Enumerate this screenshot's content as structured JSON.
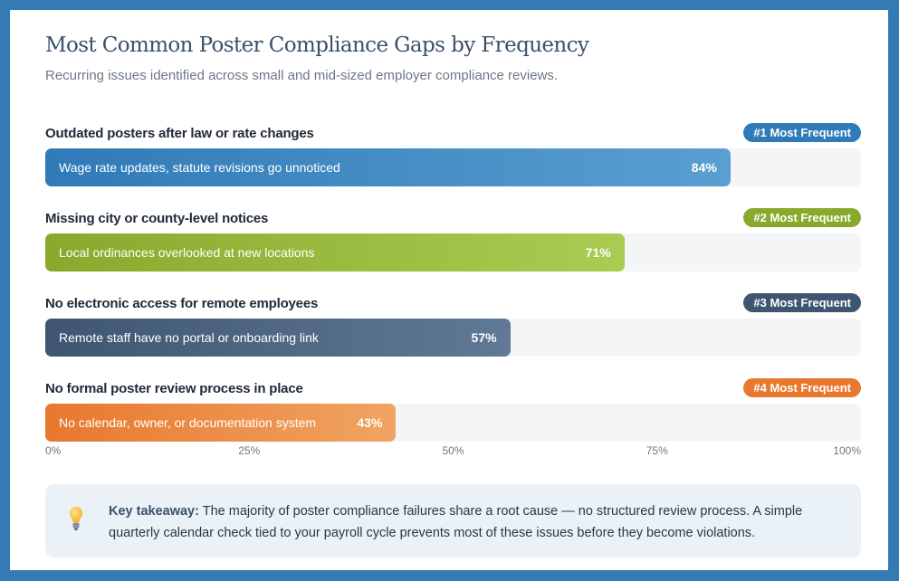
{
  "title": "Most Common Poster Compliance Gaps by Frequency",
  "subtitle": "Recurring issues identified across small and mid-sized employer compliance reviews.",
  "chart_data": {
    "type": "bar",
    "orientation": "horizontal",
    "xlim": [
      0,
      100
    ],
    "ticks": [
      "0%",
      "25%",
      "50%",
      "75%",
      "100%"
    ],
    "items": [
      {
        "label": "Outdated posters after law or rate changes",
        "description": "Wage rate updates, statute revisions go unnoticed",
        "value": 84,
        "value_label": "84%",
        "badge": "#1 Most Frequent",
        "color": "#2f7ab8",
        "color_end": "#5a9fd0"
      },
      {
        "label": "Missing city or county-level notices",
        "description": "Local ordinances overlooked at new locations",
        "value": 71,
        "value_label": "71%",
        "badge": "#2 Most Frequent",
        "color": "#89a92c",
        "color_end": "#a9cc52"
      },
      {
        "label": "No electronic access for remote employees",
        "description": "Remote staff have no portal or onboarding link",
        "value": 57,
        "value_label": "57%",
        "badge": "#3 Most Frequent",
        "color": "#3f5673",
        "color_end": "#607994"
      },
      {
        "label": "No formal poster review process in place",
        "description": "No calendar, owner, or documentation system",
        "value": 43,
        "value_label": "43%",
        "badge": "#4 Most Frequent",
        "color": "#e8782e",
        "color_end": "#f0a462"
      }
    ]
  },
  "takeaway": {
    "icon": "lightbulb-icon",
    "lead": "Key takeaway:",
    "text": " The majority of poster compliance failures share a root cause — no structured review process. A simple quarterly calendar check tied to your payroll cycle prevents most of these issues before they become violations."
  }
}
